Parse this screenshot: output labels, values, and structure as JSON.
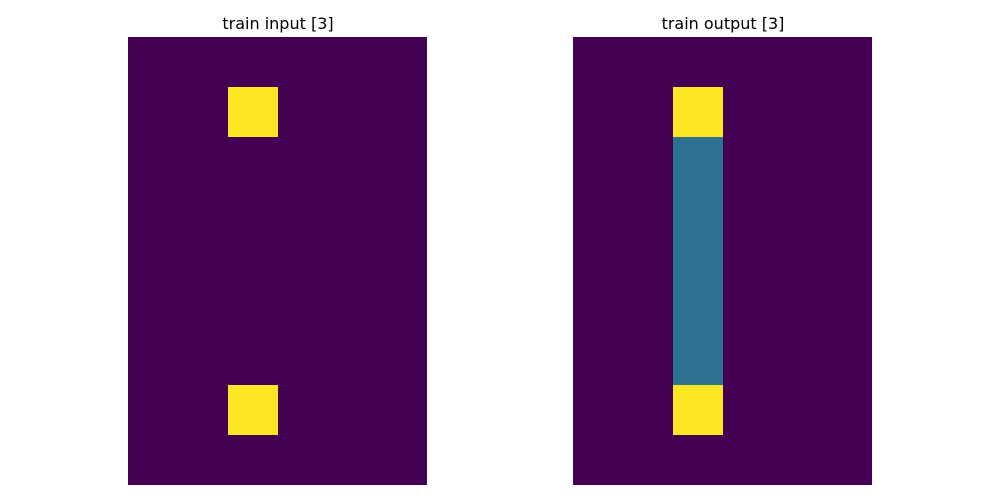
{
  "panels": [
    {
      "title": "train input [3]",
      "grid": [
        [
          0,
          0,
          0,
          0,
          0,
          0
        ],
        [
          0,
          0,
          1,
          0,
          0,
          0
        ],
        [
          0,
          0,
          0,
          0,
          0,
          0
        ],
        [
          0,
          0,
          0,
          0,
          0,
          0
        ],
        [
          0,
          0,
          0,
          0,
          0,
          0
        ],
        [
          0,
          0,
          0,
          0,
          0,
          0
        ],
        [
          0,
          0,
          0,
          0,
          0,
          0
        ],
        [
          0,
          0,
          1,
          0,
          0,
          0
        ],
        [
          0,
          0,
          0,
          0,
          0,
          0
        ]
      ]
    },
    {
      "title": "train output [3]",
      "grid": [
        [
          0,
          0,
          0,
          0,
          0,
          0
        ],
        [
          0,
          0,
          1,
          0,
          0,
          0
        ],
        [
          0,
          0,
          2,
          0,
          0,
          0
        ],
        [
          0,
          0,
          2,
          0,
          0,
          0
        ],
        [
          0,
          0,
          2,
          0,
          0,
          0
        ],
        [
          0,
          0,
          2,
          0,
          0,
          0
        ],
        [
          0,
          0,
          2,
          0,
          0,
          0
        ],
        [
          0,
          0,
          1,
          0,
          0,
          0
        ],
        [
          0,
          0,
          0,
          0,
          0,
          0
        ]
      ]
    }
  ],
  "palette": {
    "0": "#440154",
    "1": "#fde725",
    "2": "#2c728e"
  }
}
